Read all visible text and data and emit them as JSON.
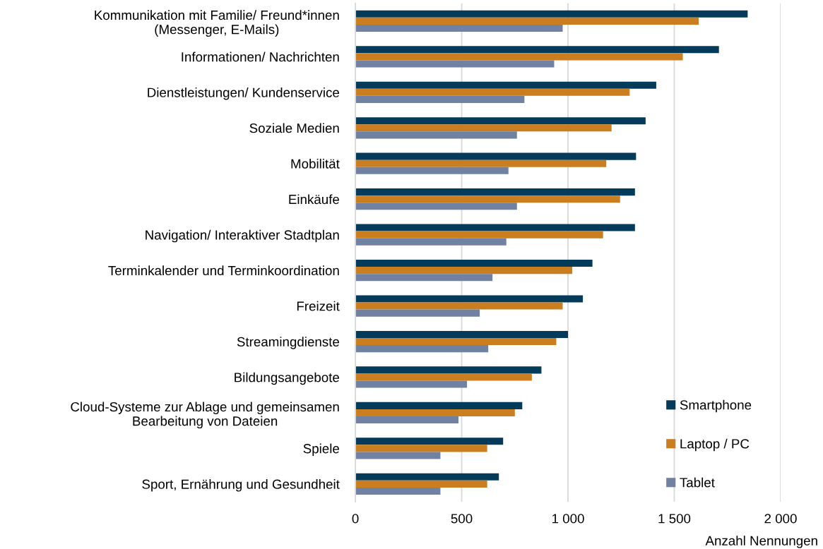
{
  "chart_data": {
    "type": "bar",
    "orientation": "horizontal",
    "categories": [
      "Kommunikation mit Familie/ Freund*innen\n(Messenger, E-Mails)",
      "Informationen/ Nachrichten",
      "Dienstleistungen/ Kundenservice",
      "Soziale Medien",
      "Mobilität",
      "Einkäufe",
      "Navigation/ Interaktiver Stadtplan",
      "Terminkalender und Terminkoordination",
      "Freizeit",
      "Streamingdienste",
      "Bildungsangebote",
      "Cloud-Systeme zur Ablage und gemeinsamen\nBearbeitung von Dateien",
      "Spiele",
      "Sport, Ernährung und Gesundheit"
    ],
    "series": [
      {
        "name": "Smartphone",
        "color": "#043a5a",
        "values": [
          1845,
          1710,
          1415,
          1365,
          1320,
          1315,
          1315,
          1115,
          1070,
          1000,
          875,
          785,
          695,
          675
        ]
      },
      {
        "name": "Laptop / PC",
        "color": "#cb7e20",
        "values": [
          1615,
          1540,
          1290,
          1205,
          1180,
          1245,
          1165,
          1020,
          975,
          945,
          830,
          750,
          620,
          620
        ]
      },
      {
        "name": "Tablet",
        "color": "#7181a2",
        "values": [
          975,
          935,
          795,
          760,
          720,
          760,
          710,
          645,
          585,
          625,
          525,
          485,
          400,
          400
        ]
      }
    ],
    "xlim": [
      0,
      2000
    ],
    "xticks": [
      0,
      500,
      {
        "value": 1000,
        "label": "1 000"
      },
      {
        "value": 1500,
        "label": "1 500"
      },
      {
        "value": 2000,
        "label": "2 000"
      }
    ],
    "xlabel": "Anzahl Nennungen",
    "grid": "x",
    "legend": "bottom right"
  }
}
